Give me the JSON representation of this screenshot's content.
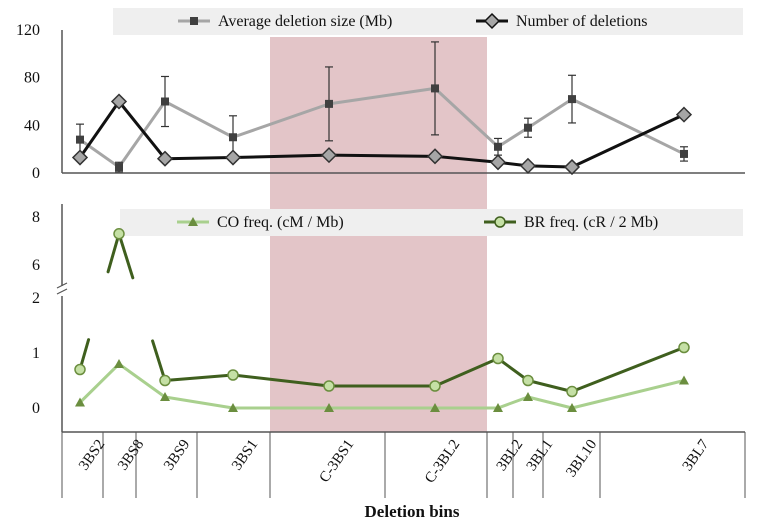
{
  "chart_data": [
    {
      "type": "line",
      "panel": "top",
      "categories": [
        "3BS2",
        "3BS8",
        "3BS9",
        "3BS1",
        "C-3BS1",
        "C-3BL2",
        "3BL2",
        "3BL1",
        "3BL10",
        "3BL7"
      ],
      "ylim": [
        0,
        120
      ],
      "yticks": [
        "0",
        "40",
        "80",
        "120"
      ],
      "legend_position": "top",
      "highlight_region": {
        "from": "C-3BS1",
        "to": "C-3BL2",
        "color": "#e3c5c8"
      },
      "series": [
        {
          "name": "Average deletion size (Mb)",
          "color": "#a6a6a6",
          "marker": "square",
          "marker_color": "#404040",
          "values": [
            28,
            5,
            60,
            30,
            58,
            71,
            22,
            38,
            62,
            16
          ],
          "error": [
            13,
            4,
            21,
            18,
            31,
            39,
            7,
            8,
            20,
            6
          ]
        },
        {
          "name": "Number of deletions",
          "color": "#111111",
          "marker": "diamond",
          "marker_color": "#a6a6a6",
          "values": [
            13,
            60,
            12,
            13,
            15,
            14,
            9,
            6,
            5,
            49
          ]
        }
      ]
    },
    {
      "type": "line",
      "panel": "bottom",
      "categories": [
        "3BS2",
        "3BS8",
        "3BS9",
        "3BS1",
        "C-3BS1",
        "C-3BL2",
        "3BL2",
        "3BL1",
        "3BL10",
        "3BL7"
      ],
      "ylim": [
        0,
        8
      ],
      "axis_break": [
        2,
        5
      ],
      "yticks": [
        "0",
        "1",
        "2",
        "6",
        "8"
      ],
      "legend_position": "top",
      "xlabel": "Deletion bins",
      "series": [
        {
          "name": "CO freq. (cM / Mb)",
          "color": "#a9d08e",
          "marker": "triangle",
          "marker_color": "#6b8e3f",
          "values": [
            0.1,
            0.8,
            0.2,
            0.0,
            0.0,
            0.0,
            0.0,
            0.2,
            0.0,
            0.5
          ]
        },
        {
          "name": "BR freq. (cR / 2 Mb)",
          "color": "#3f5f1e",
          "marker": "circle",
          "marker_color": "#c5e0a5",
          "values": [
            0.7,
            7.3,
            0.5,
            0.6,
            0.4,
            0.4,
            0.9,
            0.5,
            0.3,
            1.1
          ]
        }
      ]
    }
  ]
}
